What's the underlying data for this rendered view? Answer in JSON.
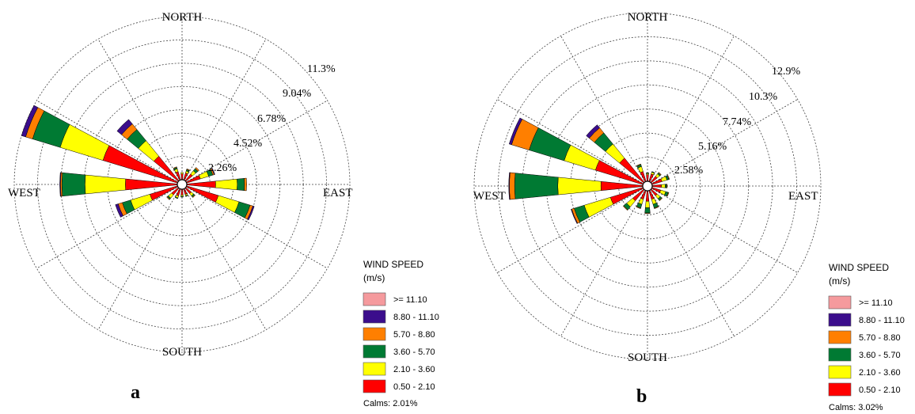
{
  "chart_data": [
    {
      "type": "windrose",
      "panel_label": "a",
      "directions": [
        "NORTH",
        "EAST",
        "SOUTH",
        "WEST"
      ],
      "ring_labels": [
        "2.26%",
        "4.52%",
        "6.78%",
        "9.04%",
        "11.3%"
      ],
      "ring_values": [
        2.26,
        4.52,
        6.78,
        9.04,
        11.3
      ],
      "legend_title": "WIND SPEED",
      "legend_unit": "(m/s)",
      "calms": "Calms: 2.01%",
      "series": [
        {
          "name": ">= 11.10",
          "color": "#f59a9d"
        },
        {
          "name": "8.80 - 11.10",
          "color": "#3b0d8c"
        },
        {
          "name": "5.70 - 8.80",
          "color": "#ff7f00"
        },
        {
          "name": "3.60 - 5.70",
          "color": "#007a33"
        },
        {
          "name": "2.10 - 3.60",
          "color": "#ffff00"
        },
        {
          "name": "0.50 - 2.10",
          "color": "#ff0000"
        }
      ],
      "sectors_deg": [
        0,
        22.5,
        45,
        67.5,
        90,
        112.5,
        135,
        157.5,
        180,
        202.5,
        225,
        247.5,
        270,
        292.5,
        315,
        337.5
      ],
      "values": [
        [
          0,
          0,
          0,
          0,
          0.1,
          0.4
        ],
        [
          0,
          0,
          0.05,
          0.1,
          0.15,
          0.5
        ],
        [
          0,
          0,
          0.1,
          0.2,
          0.3,
          0.6
        ],
        [
          0,
          0.05,
          0.1,
          0.3,
          0.6,
          1.0
        ],
        [
          0,
          0,
          0.15,
          0.5,
          1.5,
          2.0
        ],
        [
          0,
          0.1,
          0.2,
          0.8,
          1.5,
          2.3
        ],
        [
          0,
          0,
          0.05,
          0.1,
          0.2,
          0.5
        ],
        [
          0,
          0,
          0,
          0.05,
          0.1,
          0.4
        ],
        [
          0,
          0,
          0,
          0.05,
          0.1,
          0.4
        ],
        [
          0,
          0,
          0,
          0.05,
          0.15,
          0.5
        ],
        [
          0,
          0,
          0.05,
          0.1,
          0.3,
          0.6
        ],
        [
          0,
          0.2,
          0.3,
          0.6,
          1.4,
          2.0
        ],
        [
          0,
          0.05,
          0.1,
          1.6,
          2.8,
          3.6
        ],
        [
          0,
          0.3,
          0.5,
          2.0,
          3.1,
          5.4
        ],
        [
          0,
          0.4,
          0.5,
          1.0,
          1.4,
          2.2
        ],
        [
          0,
          0,
          0.05,
          0.1,
          0.2,
          0.6
        ]
      ]
    },
    {
      "type": "windrose",
      "panel_label": "b",
      "directions": [
        "NORTH",
        "EAST",
        "SOUTH",
        "WEST"
      ],
      "ring_labels": [
        "2.58%",
        "5.16%",
        "7.74%",
        "10.3%",
        "12.9%"
      ],
      "ring_values": [
        2.58,
        5.16,
        7.74,
        10.3,
        12.9
      ],
      "legend_title": "WIND SPEED",
      "legend_unit": "(m/s)",
      "calms": "Calms: 3.02%",
      "series": [
        {
          "name": ">= 11.10",
          "color": "#f59a9d"
        },
        {
          "name": "8.80 - 11.10",
          "color": "#3b0d8c"
        },
        {
          "name": "5.70 - 8.80",
          "color": "#ff7f00"
        },
        {
          "name": "3.60 - 5.70",
          "color": "#007a33"
        },
        {
          "name": "2.10 - 3.60",
          "color": "#ffff00"
        },
        {
          "name": "0.50 - 2.10",
          "color": "#ff0000"
        }
      ],
      "sectors_deg": [
        0,
        22.5,
        45,
        67.5,
        90,
        112.5,
        135,
        157.5,
        180,
        202.5,
        225,
        247.5,
        270,
        292.5,
        315,
        337.5
      ],
      "values": [
        [
          0,
          0,
          0,
          0.05,
          0.1,
          0.5
        ],
        [
          0,
          0,
          0,
          0.05,
          0.15,
          0.6
        ],
        [
          0,
          0,
          0.05,
          0.1,
          0.25,
          0.6
        ],
        [
          0,
          0,
          0.05,
          0.15,
          0.4,
          0.8
        ],
        [
          0,
          0,
          0.05,
          0.1,
          0.3,
          0.7
        ],
        [
          0,
          0,
          0.05,
          0.2,
          0.4,
          0.7
        ],
        [
          0,
          0,
          0.05,
          0.15,
          0.3,
          0.6
        ],
        [
          0,
          0,
          0.05,
          0.3,
          0.4,
          0.7
        ],
        [
          0,
          0,
          0.05,
          0.4,
          0.5,
          0.8
        ],
        [
          0,
          0,
          0.05,
          0.3,
          0.4,
          0.7
        ],
        [
          0,
          0,
          0.05,
          0.3,
          0.6,
          1.1
        ],
        [
          0,
          0.05,
          0.2,
          0.8,
          2.1,
          2.6
        ],
        [
          0,
          0.05,
          0.4,
          3.3,
          3.3,
          3.2
        ],
        [
          0,
          0.2,
          1.4,
          2.8,
          2.5,
          3.8
        ],
        [
          0,
          0.3,
          0.5,
          1.1,
          1.4,
          2.4
        ],
        [
          0,
          0,
          0.05,
          0.15,
          0.4,
          0.8
        ]
      ]
    }
  ]
}
